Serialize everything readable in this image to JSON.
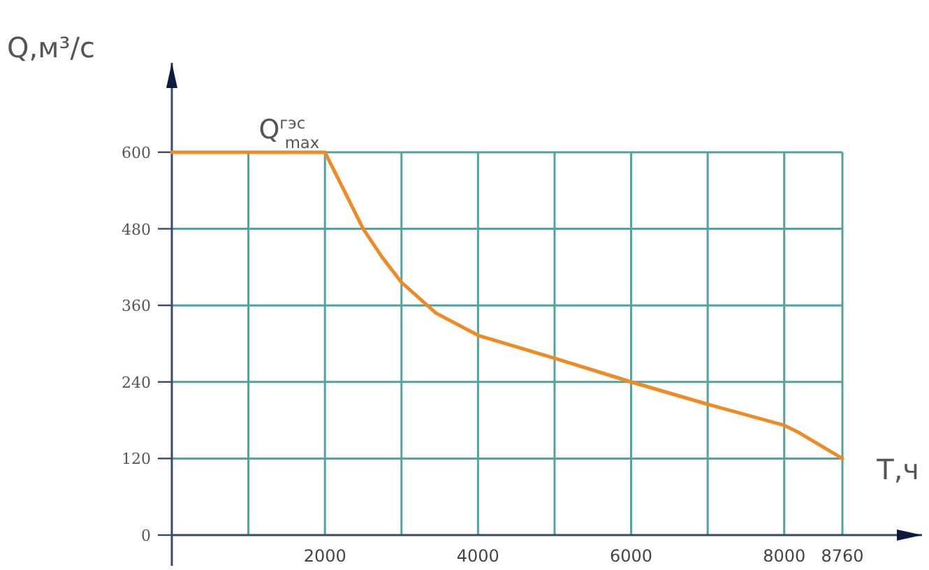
{
  "chart_data": {
    "type": "line",
    "xlabel": "Т,ч",
    "ylabel": "Q,м³/с",
    "annotations": [
      {
        "text": "Q$^{гэс}$$_{max}$",
        "x": 1500,
        "y": 600
      }
    ],
    "x": [
      0,
      2000,
      2250,
      2500,
      2750,
      3000,
      3450,
      4000,
      5000,
      6000,
      7000,
      8000,
      8200,
      8760
    ],
    "series": [
      {
        "color": "#f08a24",
        "values": [
          600,
          600,
          540,
          480,
          435,
          396,
          348,
          313,
          277,
          240,
          205,
          172,
          160,
          120
        ]
      }
    ],
    "xlim": [
      0,
      9800
    ],
    "ylim": [
      0,
      740
    ],
    "xticks": [
      {
        "value": 1000,
        "label": null
      },
      2000,
      {
        "value": 3000,
        "label": null
      },
      4000,
      {
        "value": 5000,
        "label": null
      },
      6000,
      {
        "value": 7000,
        "label": null
      },
      8000,
      8760
    ],
    "yticks": [
      0,
      120,
      240,
      360,
      480,
      600
    ],
    "grid": true,
    "marker": "none",
    "line_style": "solid"
  }
}
